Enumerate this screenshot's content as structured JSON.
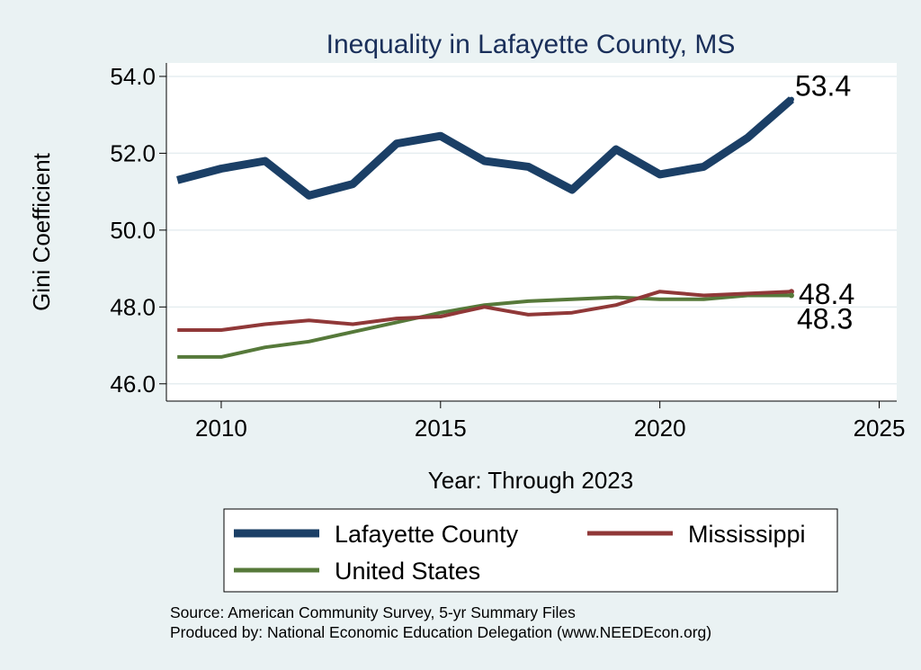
{
  "chart_data": {
    "type": "line",
    "title": "Inequality in Lafayette County, MS",
    "xlabel": "Year: Through 2023",
    "ylabel": "Gini Coefficient",
    "xlim": [
      2008.75,
      2025.4
    ],
    "ylim": [
      45.55,
      54.35
    ],
    "x_ticks": [
      2010,
      2015,
      2020,
      2025
    ],
    "y_ticks": [
      46.0,
      48.0,
      50.0,
      52.0,
      54.0
    ],
    "y_tick_labels": [
      "46.0",
      "48.0",
      "50.0",
      "52.0",
      "54.0"
    ],
    "grid": true,
    "legend_position": "bottom",
    "x": [
      2009,
      2010,
      2011,
      2012,
      2013,
      2014,
      2015,
      2016,
      2017,
      2018,
      2019,
      2020,
      2021,
      2022,
      2023
    ],
    "series": [
      {
        "name": "Lafayette County",
        "color": "#1b3f66",
        "values": [
          51.3,
          51.6,
          51.8,
          50.9,
          51.2,
          52.25,
          52.45,
          51.8,
          51.65,
          51.05,
          52.1,
          51.45,
          51.65,
          52.4,
          53.4
        ],
        "end_label": "53.4"
      },
      {
        "name": "Mississippi",
        "color": "#903838",
        "values": [
          47.4,
          47.4,
          47.55,
          47.65,
          47.55,
          47.7,
          47.75,
          48.0,
          47.8,
          47.85,
          48.05,
          48.4,
          48.3,
          48.35,
          48.4
        ],
        "end_label": "48.4"
      },
      {
        "name": "United States",
        "color": "#56793a",
        "values": [
          46.7,
          46.7,
          46.95,
          47.1,
          47.35,
          47.6,
          47.85,
          48.05,
          48.15,
          48.2,
          48.25,
          48.2,
          48.2,
          48.3,
          48.3
        ],
        "end_label": "48.3"
      }
    ]
  },
  "source": {
    "line1": "Source: American Community Survey, 5-yr Summary Files",
    "line2": "Produced by: National Economic Education Delegation (www.NEEDEcon.org)"
  }
}
